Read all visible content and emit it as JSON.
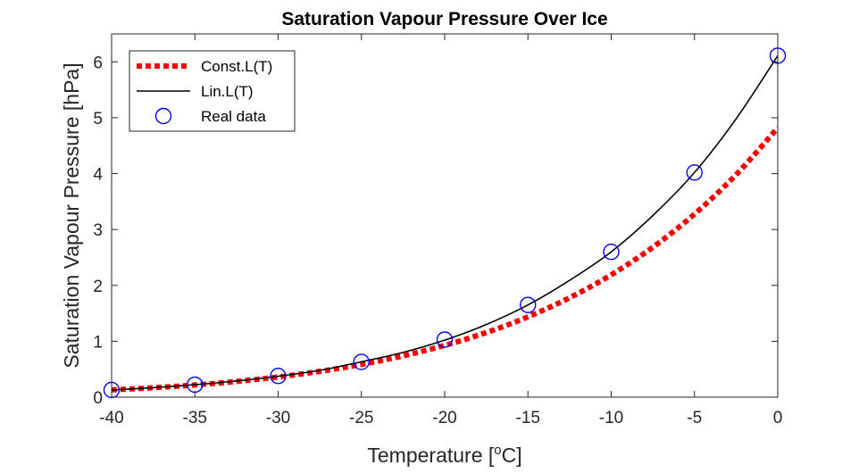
{
  "chart_data": {
    "type": "line",
    "title": "Saturation Vapour Pressure Over Ice",
    "xlabel": "Temperature [",
    "xlabel_sup": "o",
    "xlabel_end": "C]",
    "ylabel": "Saturation Vapour Pressure [hPa]",
    "xlim": [
      -40,
      0
    ],
    "ylim": [
      0,
      6.5
    ],
    "xticks": [
      -40,
      -35,
      -30,
      -25,
      -20,
      -15,
      -10,
      -5,
      0
    ],
    "yticks": [
      0,
      1,
      2,
      3,
      4,
      5,
      6
    ],
    "grid": false,
    "legend_position": "top-left",
    "series": [
      {
        "name": "Const.L(T)",
        "style": "dotted-thick",
        "color": "#ff0000",
        "formula_description_hidden": true,
        "x": [
          -40,
          -37.5,
          -35,
          -32.5,
          -30,
          -27.5,
          -25,
          -22.5,
          -20,
          -17.5,
          -15,
          -12.5,
          -10,
          -7.5,
          -5,
          -2.5,
          0
        ],
        "values": [
          0.129,
          0.168,
          0.218,
          0.281,
          0.361,
          0.461,
          0.585,
          0.738,
          0.926,
          1.156,
          1.437,
          1.778,
          2.189,
          2.683,
          3.275,
          3.981,
          4.821
        ]
      },
      {
        "name": "Lin.L(T)",
        "style": "solid",
        "color": "#000000",
        "x": [
          -40,
          -37.5,
          -35,
          -32.5,
          -30,
          -27.5,
          -25,
          -22.5,
          -20,
          -17.5,
          -15,
          -12.5,
          -10,
          -7.5,
          -5,
          -2.5,
          0
        ],
        "values": [
          0.128,
          0.168,
          0.222,
          0.289,
          0.373,
          0.479,
          0.633,
          0.801,
          1.02,
          1.3,
          1.65,
          2.09,
          2.6,
          3.25,
          4.02,
          4.98,
          6.11
        ]
      },
      {
        "name": "Real data",
        "style": "circle-markers",
        "color": "#0000ff",
        "x": [
          -40,
          -35,
          -30,
          -25,
          -20,
          -15,
          -10,
          -5,
          0
        ],
        "values": [
          0.128,
          0.223,
          0.38,
          0.63,
          1.03,
          1.65,
          2.6,
          4.02,
          6.11
        ]
      }
    ]
  }
}
